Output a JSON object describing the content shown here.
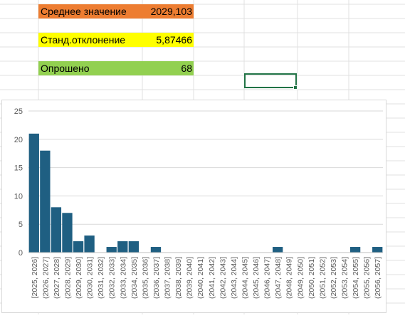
{
  "stats": [
    {
      "label": "Среднее значение",
      "value": "2029,103",
      "color": "#ed7d31"
    },
    {
      "label": "Станд.отклонение",
      "value": "5,87466",
      "color": "#ffff00"
    },
    {
      "label": "Опрошено",
      "value": "68",
      "color": "#92d050"
    }
  ],
  "colors": {
    "bar": "#1f5f82",
    "grid": "#d9d9d9",
    "axis_text": "#595959",
    "selection": "#217346"
  },
  "chart_data": {
    "type": "bar",
    "title": "",
    "xlabel": "",
    "ylabel": "",
    "ylim": [
      0,
      25
    ],
    "yticks": [
      0,
      5,
      10,
      15,
      20,
      25
    ],
    "grid": true,
    "categories": [
      "[2025, 2026]",
      "(2026, 2027]",
      "(2027, 2028]",
      "(2028, 2029]",
      "(2029, 2030]",
      "(2030, 2031]",
      "(2031, 2032]",
      "(2032, 2033]",
      "(2033, 2034]",
      "(2034, 2035]",
      "(2035, 2036]",
      "(2036, 2037]",
      "(2037, 2038]",
      "(2038, 2039]",
      "(2039, 2040]",
      "(2040, 2041]",
      "(2041, 2042]",
      "(2042, 2043]",
      "(2043, 2044]",
      "(2044, 2045]",
      "(2045, 2046]",
      "(2046, 2047]",
      "(2047, 2048]",
      "(2048, 2049]",
      "(2049, 2050]",
      "(2050, 2051]",
      "(2051, 2052]",
      "(2052, 2053]",
      "(2053, 2054]",
      "(2054, 2055]",
      "(2055, 2056]",
      "(2056, 2057]"
    ],
    "values": [
      21,
      18,
      8,
      7,
      2,
      3,
      0,
      1,
      2,
      2,
      0,
      1,
      0,
      0,
      0,
      0,
      0,
      0,
      0,
      0,
      0,
      0,
      1,
      0,
      0,
      0,
      0,
      0,
      0,
      1,
      0,
      1
    ]
  }
}
